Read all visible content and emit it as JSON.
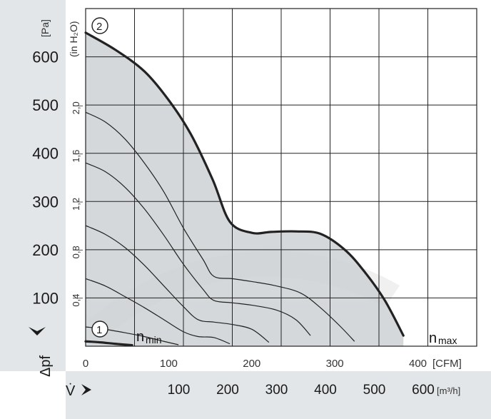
{
  "chart_data": {
    "type": "line",
    "y_label_left": "Δpf",
    "y_unit_left": "[Pa]",
    "y_unit_inner": "(in H₂O)",
    "x_label_bottom": "V̇",
    "x_unit_top": "[CFM]",
    "x_unit_bottom": "[m³/h]",
    "pa_ticks": [
      100,
      200,
      300,
      400,
      500,
      600
    ],
    "inh2o_ticks": [
      "0,4",
      "0,8",
      "1,2",
      "1,6",
      "2,0"
    ],
    "cfm_ticks": [
      "0",
      "100",
      "200",
      "300",
      "400"
    ],
    "m3h_ticks": [
      "100",
      "200",
      "300",
      "400",
      "500",
      "600"
    ],
    "xlim_m3h": [
      0,
      800
    ],
    "ylim_pa": [
      0,
      700
    ],
    "marker_max": "2",
    "marker_min": "1",
    "label_max": "max",
    "label_min": "min",
    "label_n": "n",
    "series": [
      {
        "x": [
          0,
          60,
          120,
          170,
          215,
          260,
          295,
          340,
          380,
          430,
          480,
          530,
          570,
          612,
          650
        ],
        "y": [
          650,
          615,
          570,
          510,
          440,
          345,
          258,
          235,
          237,
          238,
          233,
          200,
          155,
          95,
          22
        ]
      },
      {
        "x": [
          0,
          40,
          80,
          120,
          160,
          200,
          240,
          262,
          300,
          340,
          390,
          440,
          480,
          520,
          550
        ],
        "y": [
          485,
          465,
          430,
          380,
          320,
          245,
          180,
          145,
          140,
          134,
          125,
          110,
          80,
          42,
          10
        ]
      },
      {
        "x": [
          0,
          40,
          80,
          120,
          160,
          200,
          240,
          262,
          300,
          340,
          390,
          430,
          460
        ],
        "y": [
          380,
          362,
          330,
          285,
          230,
          170,
          118,
          95,
          90,
          85,
          75,
          55,
          22
        ]
      },
      {
        "x": [
          0,
          40,
          80,
          120,
          160,
          200,
          230,
          262,
          300,
          340,
          375
        ],
        "y": [
          250,
          232,
          205,
          168,
          125,
          82,
          55,
          50,
          45,
          35,
          8
        ]
      },
      {
        "x": [
          0,
          40,
          80,
          120,
          160,
          200,
          230,
          262,
          295
        ],
        "y": [
          140,
          125,
          103,
          80,
          55,
          30,
          20,
          18,
          5
        ]
      },
      {
        "x": [
          0,
          40,
          80,
          120,
          160,
          190
        ],
        "y": [
          40,
          35,
          28,
          20,
          10,
          3
        ]
      },
      {
        "x": [
          0,
          30,
          60,
          95
        ],
        "y": [
          10,
          8,
          5,
          2
        ]
      }
    ]
  }
}
